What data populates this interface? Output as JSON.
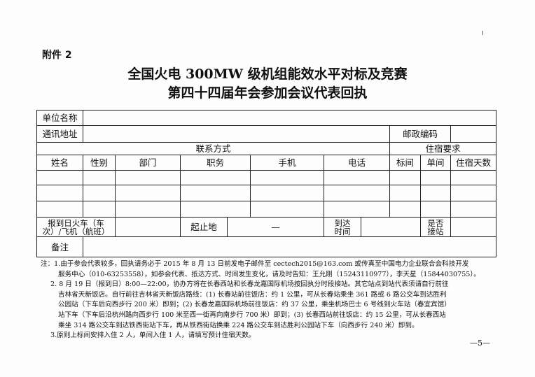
{
  "attachment_label": "附件 2",
  "title_line1": "全国火电 300MW 级机组能效水平对标及竞赛",
  "title_line2": "第四十四届年会参加会议代表回执",
  "form": {
    "unit_name": "单位名称",
    "address": "通讯地址",
    "postcode": "邮政编码",
    "contact": "联系方式",
    "accommodation": "住宿要求",
    "headers": [
      "姓名",
      "性别",
      "部门",
      "职务",
      "手机",
      "电话",
      "标间",
      "单间",
      "住宿天数"
    ],
    "arrival": "报到日火车（车次）/飞机（航班）",
    "origin_dest": "起止地",
    "dash": "—",
    "arrival_time": "到达时间",
    "pickup": "是否接站",
    "remarks": "备注"
  },
  "notes": [
    "注：1.由于参会代表较多，回执请务必于 2015 年 8 月 13 日前发电子邮件至 cectech2015@163.com 或传真至中国电力企业联合会科技开发",
    "服务中心（010-63253558），如参会代表、抵达方式、时间发生变化，请及时告知：王允刚（15243110977），李天星（15844030755）。",
    "2. 8 月 19 日（报到日）8:00—22:00，协办方将在长春西站和长春龙嘉国际机场按回执分时段接站。其它站点到站代表须请自行前往",
    "吉林省天新饭店。自行前往吉林省天新饭店路线：(1) 长春站前往饭店：约 1 公里，可从长春站乘坐 361 路或 6 路公交车到达胜利",
    "公园站（下车后向西步行 200 米）即到；(2) 长春龙嘉国际机场前往饭店：约 37 公里，乘坐机场巴士 6 号线到火车站（春宜宾馆）",
    "站下车（下车后沿杭州路向西步行 100 米至西一街再向南步行 700 米）即到；(3) 长春西站前往饭店：约 15 公里，可从长春西站",
    "乘坐 314 路公交车到达铁西街站下车，再从铁西街站换乘 224 路公交车到达胜利公园站下车（向西步行 240 米）即到。",
    "3.原则上标间安排入住 2 人，单间入住 1 人，请填写预计住宿天数。"
  ],
  "page_number": "—5—"
}
